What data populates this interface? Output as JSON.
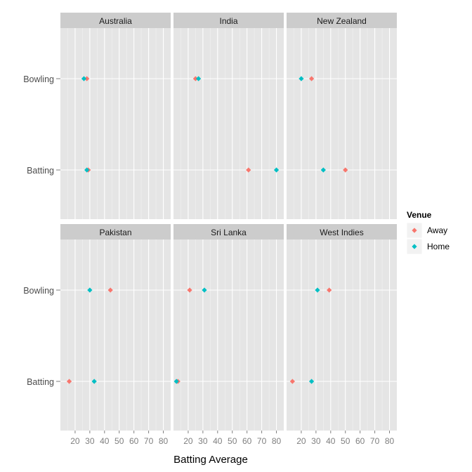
{
  "chart_data": {
    "type": "scatter",
    "title": "",
    "xlabel": "Batting Average",
    "ylabel": "",
    "facet_by": "opponent",
    "facets": [
      "Australia",
      "India",
      "New Zealand",
      "Pakistan",
      "Sri Lanka",
      "West Indies"
    ],
    "categories": [
      "Bowling",
      "Batting"
    ],
    "xlim": [
      10,
      85
    ],
    "x_ticks": [
      20,
      30,
      40,
      50,
      60,
      70,
      80
    ],
    "x_tick_labels": [
      "20",
      "30",
      "40",
      "50",
      "60",
      "70",
      "80"
    ],
    "grid": true,
    "panel_background": "#E5E5E5",
    "strip_background": "#CCCCCC",
    "legend": {
      "title": "Venue",
      "placement": "right",
      "entries": [
        {
          "label": "Away",
          "color": "#F8766D"
        },
        {
          "label": "Home",
          "color": "#00BFC4"
        }
      ]
    },
    "series": [
      {
        "name": "Away",
        "color": "#F8766D",
        "points": [
          {
            "facet": "Australia",
            "category": "Bowling",
            "x": 28
          },
          {
            "facet": "Australia",
            "category": "Batting",
            "x": 29
          },
          {
            "facet": "India",
            "category": "Bowling",
            "x": 25
          },
          {
            "facet": "India",
            "category": "Batting",
            "x": 61
          },
          {
            "facet": "New Zealand",
            "category": "Bowling",
            "x": 27
          },
          {
            "facet": "New Zealand",
            "category": "Batting",
            "x": 50
          },
          {
            "facet": "Pakistan",
            "category": "Bowling",
            "x": 44
          },
          {
            "facet": "Pakistan",
            "category": "Batting",
            "x": 16
          },
          {
            "facet": "Sri Lanka",
            "category": "Bowling",
            "x": 21
          },
          {
            "facet": "Sri Lanka",
            "category": "Batting",
            "x": 13
          },
          {
            "facet": "West Indies",
            "category": "Bowling",
            "x": 39
          },
          {
            "facet": "West Indies",
            "category": "Batting",
            "x": 14
          }
        ]
      },
      {
        "name": "Home",
        "color": "#00BFC4",
        "points": [
          {
            "facet": "Australia",
            "category": "Bowling",
            "x": 26
          },
          {
            "facet": "Australia",
            "category": "Batting",
            "x": 28
          },
          {
            "facet": "India",
            "category": "Bowling",
            "x": 27
          },
          {
            "facet": "India",
            "category": "Batting",
            "x": 80
          },
          {
            "facet": "New Zealand",
            "category": "Bowling",
            "x": 20
          },
          {
            "facet": "New Zealand",
            "category": "Batting",
            "x": 35
          },
          {
            "facet": "Pakistan",
            "category": "Bowling",
            "x": 30
          },
          {
            "facet": "Pakistan",
            "category": "Batting",
            "x": 33
          },
          {
            "facet": "Sri Lanka",
            "category": "Bowling",
            "x": 31
          },
          {
            "facet": "Sri Lanka",
            "category": "Batting",
            "x": 12
          },
          {
            "facet": "West Indies",
            "category": "Bowling",
            "x": 31
          },
          {
            "facet": "West Indies",
            "category": "Batting",
            "x": 27
          }
        ]
      }
    ]
  }
}
